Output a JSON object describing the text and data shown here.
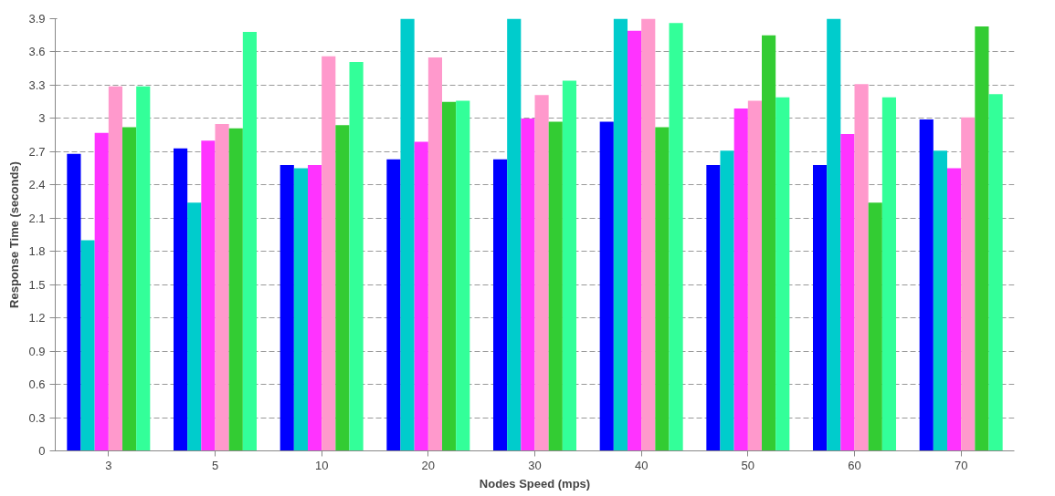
{
  "chart_data": {
    "type": "bar",
    "xlabel": "Nodes Speed (mps)",
    "ylabel": "Response Time (seconds)",
    "categories": [
      "3",
      "5",
      "10",
      "20",
      "30",
      "40",
      "50",
      "60",
      "70"
    ],
    "series": [
      {
        "color": "#0000ff",
        "values": [
          2.68,
          2.73,
          2.58,
          2.63,
          2.63,
          2.97,
          2.58,
          2.58,
          2.99
        ]
      },
      {
        "color": "#00cccc",
        "values": [
          1.9,
          2.24,
          2.55,
          3.9,
          3.9,
          3.9,
          2.71,
          3.9,
          2.71
        ]
      },
      {
        "color": "#ff33ff",
        "values": [
          2.87,
          2.8,
          2.58,
          2.79,
          3.0,
          3.79,
          3.09,
          2.86,
          2.55
        ]
      },
      {
        "color": "#ff99cc",
        "values": [
          3.29,
          2.95,
          3.56,
          3.55,
          3.21,
          3.9,
          3.16,
          3.31,
          3.01
        ]
      },
      {
        "color": "#33cc33",
        "values": [
          2.92,
          2.91,
          2.94,
          3.15,
          2.97,
          2.92,
          3.75,
          2.24,
          3.83
        ]
      },
      {
        "color": "#33ff99",
        "values": [
          3.29,
          3.78,
          3.51,
          3.16,
          3.34,
          3.86,
          3.19,
          3.19,
          3.22
        ]
      }
    ],
    "ylim": [
      0,
      3.9
    ],
    "yticks": [
      0,
      0.3,
      0.6,
      0.9,
      1.2,
      1.5,
      1.8,
      2.1,
      2.4,
      2.7,
      3,
      3.3,
      3.6,
      3.9
    ],
    "grid": "y"
  }
}
